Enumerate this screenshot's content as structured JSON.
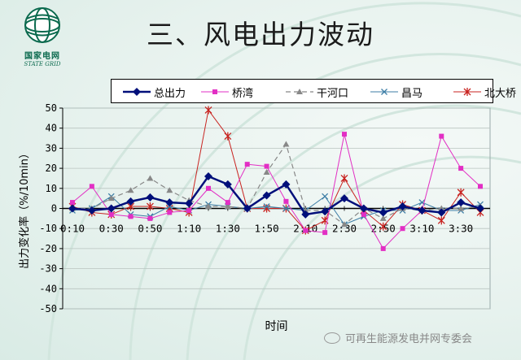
{
  "slide": {
    "title": "三、风电出力波动",
    "logo_cn": "国家电网",
    "logo_en": "STATE GRID",
    "watermark": "可再生能源发电并网专委会"
  },
  "chart_data": {
    "type": "line",
    "title": "",
    "xlabel": "时间",
    "ylabel": "出力变化率（%/10min）",
    "ylim": [
      -50,
      50
    ],
    "y_ticks": [
      -50,
      -40,
      -30,
      -20,
      -10,
      0,
      10,
      20,
      30,
      40,
      50
    ],
    "x": [
      "0:10",
      "0:20",
      "0:30",
      "0:40",
      "0:50",
      "1:00",
      "1:10",
      "1:20",
      "1:30",
      "1:40",
      "1:50",
      "2:00",
      "2:10",
      "2:20",
      "2:30",
      "2:40",
      "2:50",
      "3:00",
      "3:10",
      "3:20",
      "3:30",
      "3:40"
    ],
    "x_tick_labels": [
      "0:10",
      "0:30",
      "0:50",
      "1:10",
      "1:30",
      "1:50",
      "2:10",
      "2:30",
      "2:50",
      "3:10",
      "3:30"
    ],
    "grid": true,
    "legend": "top",
    "series": [
      {
        "name": "总出力",
        "color": "#000f7a",
        "marker": "diamond",
        "dash": "",
        "width": 2.5,
        "values": [
          0,
          -1,
          0,
          3.5,
          5.5,
          3,
          2.5,
          16,
          12,
          0,
          6.5,
          12,
          -3,
          -1.5,
          5,
          0,
          -2,
          1,
          -1,
          -2,
          3,
          0
        ]
      },
      {
        "name": "桥湾",
        "color": "#e22fc4",
        "marker": "square",
        "dash": "",
        "width": 1,
        "values": [
          3,
          11,
          -3,
          -4,
          -5,
          -2,
          -1,
          10,
          3,
          22,
          21,
          3.5,
          -11,
          -12,
          37,
          -3,
          -20,
          -10,
          -1,
          36,
          20,
          11
        ]
      },
      {
        "name": "干河口",
        "color": "#888888",
        "marker": "triangle",
        "dash": "6,4",
        "width": 1.2,
        "values": [
          0,
          0,
          5,
          9,
          15,
          9,
          4,
          1,
          1,
          0,
          18,
          32,
          -1,
          -1,
          -8,
          0,
          -5,
          0,
          -1,
          0,
          0,
          1
        ]
      },
      {
        "name": "昌马",
        "color": "#3d7ea6",
        "marker": "x",
        "dash": "",
        "width": 1,
        "values": [
          -1,
          0,
          6,
          -3,
          -4,
          1,
          -1,
          2,
          1,
          0,
          1,
          0,
          -1,
          6,
          -8,
          -4,
          -1,
          -1,
          3,
          -1,
          -1,
          2
        ]
      },
      {
        "name": "北大桥",
        "color": "#c8221f",
        "marker": "asterisk",
        "dash": "",
        "width": 1,
        "values": [
          1,
          -2,
          -3,
          1,
          1,
          0,
          -2,
          49,
          36,
          0,
          0,
          0,
          -11,
          -6,
          15,
          -1,
          -9,
          2,
          -1,
          -6,
          8,
          -2
        ]
      }
    ]
  }
}
